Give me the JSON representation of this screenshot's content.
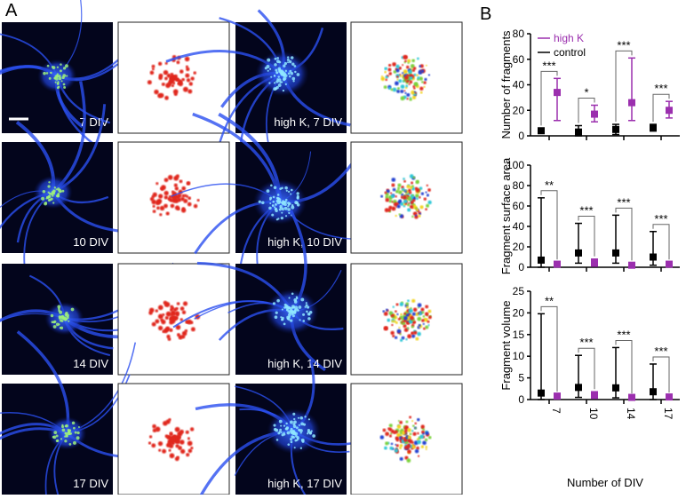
{
  "panels": {
    "a": "A",
    "b": "B"
  },
  "images": [
    {
      "caption": "7 DIV"
    },
    {
      "caption": "high K, 7 DIV"
    },
    {
      "caption": "10 DIV"
    },
    {
      "caption": "high K, 10 DIV"
    },
    {
      "caption": "14 DIV"
    },
    {
      "caption": "high K, 14 DIV"
    },
    {
      "caption": "17 DIV"
    },
    {
      "caption": "high K, 17 DIV"
    }
  ],
  "chart_data": [
    {
      "type": "errorbar",
      "ylabel": "Number of fragments",
      "categories": [
        "7",
        "10",
        "14",
        "17"
      ],
      "ylim": [
        0,
        80
      ],
      "yticks": [
        0,
        20,
        40,
        60,
        80
      ],
      "legend": "upper left",
      "series": [
        {
          "name": "high K",
          "color": "#9b2fae",
          "values": [
            34,
            17,
            26,
            20
          ],
          "lower": [
            12,
            11,
            12,
            14
          ],
          "upper": [
            45,
            24,
            61,
            27
          ]
        },
        {
          "name": "control",
          "color": "#000000",
          "values": [
            4,
            3,
            5,
            6
          ],
          "lower": [
            2,
            0,
            1,
            4
          ],
          "upper": [
            6,
            8,
            9,
            9
          ]
        }
      ],
      "significance": [
        "***",
        "*",
        "***",
        "***"
      ]
    },
    {
      "type": "errorbar",
      "ylabel": "Fragment surface area",
      "categories": [
        "7",
        "10",
        "14",
        "17"
      ],
      "ylim": [
        0,
        100
      ],
      "yticks": [
        0,
        20,
        40,
        60,
        80,
        100
      ],
      "series": [
        {
          "color": "#9b2fae",
          "values": [
            3,
            4,
            2,
            3
          ],
          "lower": [
            1,
            1,
            1,
            1
          ],
          "upper": [
            5,
            8,
            4,
            5
          ]
        },
        {
          "color": "#000000",
          "values": [
            7,
            14,
            14,
            10
          ],
          "lower": [
            0,
            4,
            4,
            2
          ],
          "upper": [
            68,
            43,
            51,
            35
          ]
        }
      ],
      "significance": [
        "**",
        "***",
        "***",
        "***"
      ]
    },
    {
      "type": "errorbar",
      "ylabel": "Fragment volume",
      "xlabel": "Number of DIV",
      "categories": [
        "7",
        "10",
        "14",
        "17"
      ],
      "ylim": [
        0,
        25
      ],
      "yticks": [
        0,
        5,
        10,
        15,
        20,
        25
      ],
      "series": [
        {
          "color": "#9b2fae",
          "values": [
            0.8,
            1,
            0.5,
            0.6
          ],
          "lower": [
            0.3,
            0.3,
            0.2,
            0.2
          ],
          "upper": [
            1.2,
            1.8,
            0.8,
            1
          ]
        },
        {
          "color": "#000000",
          "values": [
            1.5,
            2.8,
            2.7,
            1.8
          ],
          "lower": [
            0,
            0.5,
            0.4,
            0
          ],
          "upper": [
            19.8,
            10.2,
            12,
            8.2
          ]
        }
      ],
      "significance": [
        "**",
        "***",
        "***",
        "***"
      ]
    }
  ]
}
